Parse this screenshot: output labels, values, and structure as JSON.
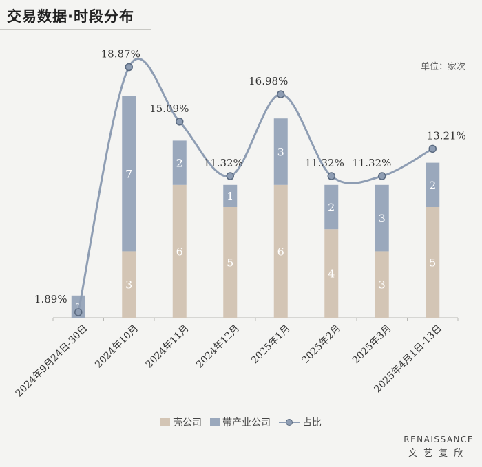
{
  "title": "交易数据·时段分布",
  "unit_label": "单位：家次",
  "legend": {
    "shell": "壳公司",
    "industry": "带产业公司",
    "ratio": "占比"
  },
  "brand": {
    "en": "RENAISSANCE",
    "cn": "文艺复欣"
  },
  "chart_data": {
    "type": "bar",
    "stacked": true,
    "categories": [
      "2024年9月24日-30日",
      "2024年10月",
      "2024年11月",
      "2024年12月",
      "2025年1月",
      "2025年2月",
      "2025年3月",
      "2025年4月1日-13日"
    ],
    "series": [
      {
        "name": "壳公司",
        "values": [
          0,
          3,
          6,
          5,
          6,
          4,
          3,
          5
        ],
        "color": "#d3c5b5"
      },
      {
        "name": "带产业公司",
        "values": [
          1,
          7,
          2,
          1,
          3,
          2,
          3,
          2
        ],
        "color": "#9aa8bc"
      }
    ],
    "line_series": {
      "name": "占比",
      "values": [
        1.89,
        18.87,
        15.09,
        11.32,
        16.98,
        11.32,
        11.32,
        13.21
      ],
      "labels": [
        "1.89%",
        "18.87%",
        "15.09%",
        "11.32%",
        "16.98%",
        "11.32%",
        "11.32%",
        "13.21%"
      ],
      "color": "#8e9db3"
    },
    "ylim": [
      0,
      10
    ],
    "legend_position": "bottom"
  }
}
